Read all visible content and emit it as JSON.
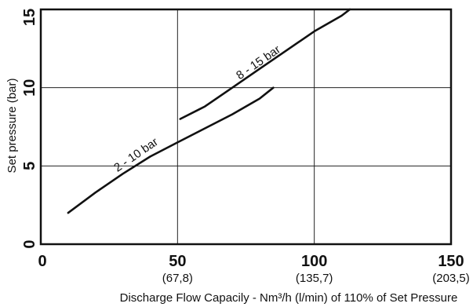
{
  "chart_data": {
    "type": "line",
    "title": "",
    "xlabel": "Discharge Flow Capacily - Nm³/h (l/min) of 110% of Set Pressure",
    "ylabel": "Set pressure (bar)",
    "xlim": [
      0,
      150
    ],
    "ylim": [
      0,
      15
    ],
    "grid": true,
    "x_ticks": [
      {
        "value": 0,
        "label": "0",
        "sublabel": ""
      },
      {
        "value": 50,
        "label": "50",
        "sublabel": "(67,8)"
      },
      {
        "value": 100,
        "label": "100",
        "sublabel": "(135,7)"
      },
      {
        "value": 150,
        "label": "150",
        "sublabel": "(203,5)"
      }
    ],
    "y_ticks": [
      {
        "value": 0,
        "label": "0"
      },
      {
        "value": 5,
        "label": "5"
      },
      {
        "value": 10,
        "label": "10"
      },
      {
        "value": 15,
        "label": "15"
      }
    ],
    "series": [
      {
        "name": "2 - 10 bar",
        "x": [
          10,
          20,
          30,
          40,
          50,
          60,
          70,
          80,
          85
        ],
        "y": [
          2.0,
          3.3,
          4.5,
          5.6,
          6.5,
          7.4,
          8.3,
          9.3,
          10.0
        ]
      },
      {
        "name": "8 - 15 bar",
        "x": [
          51,
          60,
          70,
          80,
          90,
          100,
          110,
          113
        ],
        "y": [
          8.0,
          8.8,
          10.0,
          11.2,
          12.4,
          13.6,
          14.6,
          15.0
        ]
      }
    ],
    "annotations": [
      {
        "text": "2 - 10 bar",
        "series": 0
      },
      {
        "text": "8 - 15 bar",
        "series": 1
      }
    ]
  }
}
